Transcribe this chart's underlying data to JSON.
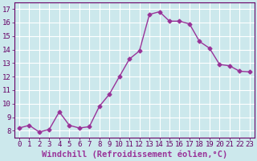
{
  "x_vals": [
    0,
    1,
    2,
    3,
    4,
    5,
    6,
    7,
    8,
    9,
    10,
    11,
    12,
    13,
    14,
    15,
    16,
    17,
    18,
    19,
    20,
    21,
    22,
    23
  ],
  "y_vals": [
    8.2,
    8.4,
    7.9,
    8.1,
    9.4,
    8.4,
    8.2,
    8.3,
    9.8,
    10.7,
    12.0,
    13.3,
    13.9,
    16.6,
    16.8,
    16.1,
    16.1,
    15.9,
    14.6,
    14.1,
    12.9,
    12.8,
    12.4,
    12.35
  ],
  "xlim": [
    -0.5,
    23.5
  ],
  "ylim": [
    7.5,
    17.5
  ],
  "yticks": [
    8,
    9,
    10,
    11,
    12,
    13,
    14,
    15,
    16,
    17
  ],
  "xticks": [
    0,
    1,
    2,
    3,
    4,
    5,
    6,
    7,
    8,
    9,
    10,
    11,
    12,
    13,
    14,
    15,
    16,
    17,
    18,
    19,
    20,
    21,
    22,
    23
  ],
  "xlabel": "Windchill (Refroidissement éolien,°C)",
  "line_color": "#993399",
  "marker": "D",
  "marker_size": 2.5,
  "bg_color": "#cce8ec",
  "grid_color": "#ffffff",
  "tick_label_fontsize": 6.5,
  "xlabel_fontsize": 7.5
}
